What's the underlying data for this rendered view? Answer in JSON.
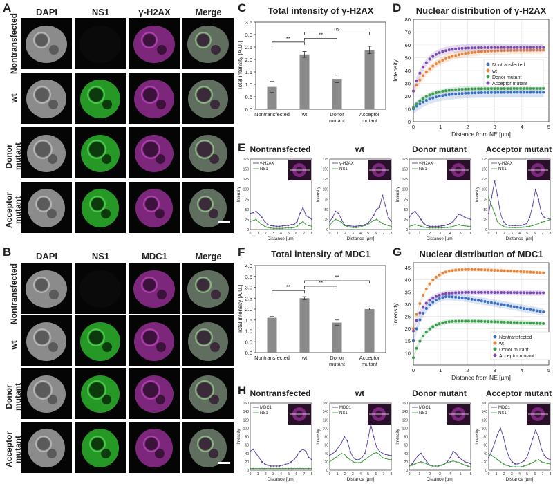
{
  "panels": {
    "A": {
      "letter": "A",
      "columns": [
        "DAPI",
        "NS1",
        "γ-H2AX",
        "Merge"
      ],
      "rows": [
        "Nontransfected",
        "wt",
        "Donor\nmutant",
        "Acceptor\nmutant"
      ]
    },
    "B": {
      "letter": "B",
      "columns": [
        "DAPI",
        "NS1",
        "MDC1",
        "Merge"
      ],
      "rows": [
        "Nontransfected",
        "wt",
        "Donor\nmutant",
        "Acceptor\nmutant"
      ]
    },
    "C": {
      "letter": "C"
    },
    "D": {
      "letter": "D"
    },
    "E": {
      "letter": "E"
    },
    "F": {
      "letter": "F"
    },
    "G": {
      "letter": "G"
    },
    "H": {
      "letter": "H"
    }
  },
  "colors": {
    "nontransfected": "#3a6fc4",
    "wt": "#e8843a",
    "donor": "#3a9e4a",
    "acceptor": "#7b4bb0",
    "line_marker": "#5a3f9e",
    "line_ns1": "#3e9b3e",
    "bar": "#8a8a8a"
  },
  "chart_data": [
    {
      "id": "C",
      "type": "bar",
      "title": "Total intensity of γ-H2AX",
      "categories": [
        "Nontransfected",
        "wt",
        "Donor\nmutant",
        "Acceptor\nmutant"
      ],
      "values": [
        0.9,
        2.2,
        1.22,
        2.38
      ],
      "errors": [
        0.22,
        0.12,
        0.15,
        0.15
      ],
      "ylabel": "Total intensity [A.U.]",
      "ylim": [
        0,
        3.5
      ],
      "yticks": [
        "0.0",
        "0.5",
        "1.0",
        "1.5",
        "2.0",
        "2.5",
        "3.0",
        "3.5"
      ],
      "significance": [
        {
          "from": 0,
          "to": 1,
          "label": "**",
          "level": 2.7
        },
        {
          "from": 1,
          "to": 2,
          "label": "**",
          "level": 2.85
        },
        {
          "from": 1,
          "to": 3,
          "label": "ns",
          "level": 3.1
        }
      ]
    },
    {
      "id": "D",
      "type": "scatter",
      "title": "Nuclear distribution of γ-H2AX",
      "xlabel": "Distance from NE [µm]",
      "ylabel": "Intensity",
      "xlim": [
        0,
        5
      ],
      "ylim": [
        0,
        80
      ],
      "xticks": [
        "0",
        "1",
        "2",
        "3",
        "4",
        "5"
      ],
      "yticks": [
        "0",
        "10",
        "20",
        "30",
        "40",
        "50",
        "60",
        "70",
        "80"
      ],
      "legend": [
        "Nontransfected",
        "wt",
        "Donor mutant",
        "Acceptor mutant"
      ],
      "series": [
        {
          "name": "Nontransfected",
          "start": 10,
          "plateau": 23,
          "rate": 1.5,
          "decay": 0,
          "band": 4
        },
        {
          "name": "wt",
          "start": 24,
          "plateau": 56,
          "rate": 1.3,
          "decay": 0,
          "band": 3
        },
        {
          "name": "Donor mutant",
          "start": 11,
          "plateau": 26,
          "rate": 1.8,
          "decay": 0,
          "band": 2
        },
        {
          "name": "Acceptor mutant",
          "start": 24,
          "plateau": 58,
          "rate": 2.2,
          "decay": 0,
          "band": 3
        }
      ]
    },
    {
      "id": "F",
      "type": "bar",
      "title": "Total intensity of MDC1",
      "categories": [
        "Nontransfected",
        "wt",
        "Donor\nmutant",
        "Acceptor\nmutant"
      ],
      "values": [
        1.6,
        2.5,
        1.38,
        2.0
      ],
      "errors": [
        0.06,
        0.07,
        0.12,
        0.05
      ],
      "ylabel": "Total intensity [A.U.]",
      "ylim": [
        0,
        4.0
      ],
      "yticks": [
        "0.0",
        "0.5",
        "1.0",
        "1.5",
        "2.0",
        "2.5",
        "3.0",
        "3.5",
        "4.0"
      ],
      "significance": [
        {
          "from": 0,
          "to": 1,
          "label": "**",
          "level": 2.85
        },
        {
          "from": 1,
          "to": 2,
          "label": "**",
          "level": 3.05
        },
        {
          "from": 1,
          "to": 3,
          "label": "**",
          "level": 3.3
        }
      ]
    },
    {
      "id": "G",
      "type": "scatter",
      "title": "Nuclear distribution of MDC1",
      "xlabel": "Distance from NE [µm]",
      "ylabel": "Intensity",
      "xlim": [
        0,
        5
      ],
      "ylim": [
        5,
        47
      ],
      "xticks": [
        "0",
        "1",
        "2",
        "3",
        "4",
        "5"
      ],
      "yticks": [
        "10",
        "15",
        "20",
        "25",
        "30",
        "35",
        "40",
        "45"
      ],
      "legend": [
        "Nontransfected",
        "wt",
        "Donor mutant",
        "Acceptor mutant"
      ],
      "series": [
        {
          "name": "Nontransfected",
          "start": 15,
          "plateau": 34,
          "rate": 2.5,
          "decay": 2.0,
          "band": 1.5
        },
        {
          "name": "wt",
          "start": 20,
          "plateau": 45,
          "rate": 2.2,
          "decay": 0.6,
          "band": 0.8
        },
        {
          "name": "Donor mutant",
          "start": 8,
          "plateau": 23.5,
          "rate": 2.4,
          "decay": 0.4,
          "band": 1.0
        },
        {
          "name": "Acceptor mutant",
          "start": 19,
          "plateau": 35,
          "rate": 2.6,
          "decay": 0.1,
          "band": 1.2
        }
      ]
    },
    {
      "id": "E",
      "type": "line",
      "xlabel": "Distance [µm]",
      "ylabel": "Intensity",
      "legend": [
        "γ-H2AX",
        "NS1"
      ],
      "ylim": [
        0,
        175
      ],
      "yticks": [
        "0",
        "25",
        "50",
        "75",
        "100",
        "125",
        "150",
        "175"
      ],
      "subplots": [
        {
          "title": "Nontransfected",
          "xticks": [
            "0",
            "1",
            "2",
            "3",
            "4",
            "5",
            "6",
            "7",
            "8"
          ],
          "marker": [
            40,
            42,
            45,
            38,
            30,
            20,
            12,
            10,
            9,
            8,
            8,
            9,
            10,
            10,
            12,
            13,
            20,
            40,
            55,
            35,
            30,
            25
          ],
          "ns1": [
            20,
            22,
            25,
            18,
            12,
            8,
            5,
            4,
            3,
            3,
            3,
            3,
            4,
            4,
            4,
            5,
            8,
            15,
            20,
            12,
            10,
            8
          ]
        },
        {
          "title": "wt",
          "xticks": [
            "0",
            "1",
            "2",
            "3",
            "4",
            "5",
            "6",
            "7",
            "8"
          ],
          "marker": [
            20,
            30,
            45,
            40,
            25,
            12,
            10,
            9,
            8,
            8,
            9,
            10,
            12,
            15,
            25,
            35,
            50,
            55,
            85,
            60,
            30,
            20
          ],
          "ns1": [
            10,
            20,
            25,
            22,
            18,
            10,
            8,
            6,
            5,
            5,
            6,
            8,
            10,
            12,
            18,
            22,
            25,
            20,
            15,
            12,
            10,
            8
          ]
        },
        {
          "title": "Donor mutant",
          "xticks": [
            "0",
            "1",
            "2",
            "3",
            "4",
            "5",
            "6"
          ],
          "marker": [
            30,
            40,
            45,
            35,
            25,
            15,
            10,
            8,
            8,
            8,
            8,
            9,
            10,
            12,
            15,
            20,
            30,
            38,
            35,
            30,
            28,
            25
          ],
          "ns1": [
            8,
            10,
            12,
            10,
            8,
            6,
            5,
            4,
            4,
            4,
            4,
            4,
            5,
            5,
            6,
            8,
            10,
            12,
            10,
            9,
            8,
            8
          ]
        },
        {
          "title": "Acceptor mutant",
          "xticks": [
            "0",
            "1",
            "2",
            "3",
            "4",
            "5",
            "6",
            "7",
            "8"
          ],
          "marker": [
            40,
            80,
            120,
            85,
            40,
            20,
            12,
            10,
            10,
            10,
            10,
            10,
            12,
            15,
            30,
            60,
            100,
            75,
            40,
            30,
            28,
            25
          ],
          "ns1": [
            80,
            60,
            40,
            20,
            12,
            8,
            6,
            5,
            5,
            5,
            5,
            5,
            6,
            7,
            8,
            10,
            12,
            15,
            18,
            20,
            22,
            25
          ]
        }
      ]
    },
    {
      "id": "H",
      "type": "line",
      "xlabel": "Distance [µm]",
      "ylabel": "Intensity",
      "legend": [
        "MDC1",
        "NS1"
      ],
      "ylim": [
        0,
        160
      ],
      "yticks": [
        "0",
        "20",
        "40",
        "60",
        "80",
        "100",
        "120",
        "140",
        "160"
      ],
      "subplots": [
        {
          "title": "Nontransfected",
          "xticks": [
            "0",
            "1",
            "2",
            "3",
            "4",
            "5",
            "6",
            "7",
            "8"
          ],
          "marker": [
            45,
            50,
            40,
            30,
            20,
            15,
            12,
            10,
            10,
            10,
            10,
            12,
            14,
            16,
            20,
            25,
            35,
            45,
            50,
            45,
            30,
            25
          ],
          "ns1": [
            4,
            4,
            4,
            4,
            4,
            4,
            4,
            4,
            4,
            4,
            4,
            4,
            4,
            4,
            4,
            4,
            4,
            4,
            4,
            4,
            4,
            4
          ]
        },
        {
          "title": "wt",
          "xticks": [
            "0",
            "1",
            "2",
            "3",
            "4",
            "5",
            "6",
            "7",
            "8"
          ],
          "marker": [
            35,
            40,
            45,
            55,
            65,
            80,
            70,
            45,
            30,
            25,
            25,
            30,
            40,
            70,
            110,
            80,
            55,
            45,
            40,
            38,
            36,
            35
          ],
          "ns1": [
            20,
            25,
            30,
            35,
            40,
            38,
            30,
            25,
            20,
            18,
            18,
            20,
            25,
            30,
            35,
            40,
            42,
            38,
            30,
            28,
            26,
            25
          ]
        },
        {
          "title": "Donor mutant",
          "xticks": [
            "0",
            "1",
            "2",
            "3",
            "4",
            "5",
            "6"
          ],
          "marker": [
            10,
            15,
            25,
            35,
            40,
            30,
            20,
            12,
            10,
            10,
            10,
            12,
            15,
            20,
            30,
            45,
            40,
            30,
            25,
            20,
            18,
            15
          ],
          "ns1": [
            10,
            12,
            15,
            18,
            20,
            18,
            15,
            12,
            10,
            10,
            10,
            12,
            15,
            18,
            20,
            22,
            20,
            18,
            15,
            12,
            10,
            8
          ]
        },
        {
          "title": "Acceptor mutant",
          "xticks": [
            "0",
            "1",
            "2",
            "3",
            "4",
            "5",
            "6",
            "7",
            "8"
          ],
          "marker": [
            30,
            45,
            65,
            85,
            100,
            80,
            50,
            30,
            20,
            15,
            15,
            18,
            22,
            30,
            50,
            75,
            95,
            80,
            50,
            35,
            28,
            25
          ],
          "ns1": [
            40,
            35,
            30,
            25,
            20,
            15,
            12,
            10,
            8,
            8,
            8,
            8,
            10,
            12,
            15,
            18,
            22,
            25,
            20,
            18,
            16,
            15
          ]
        }
      ]
    }
  ]
}
